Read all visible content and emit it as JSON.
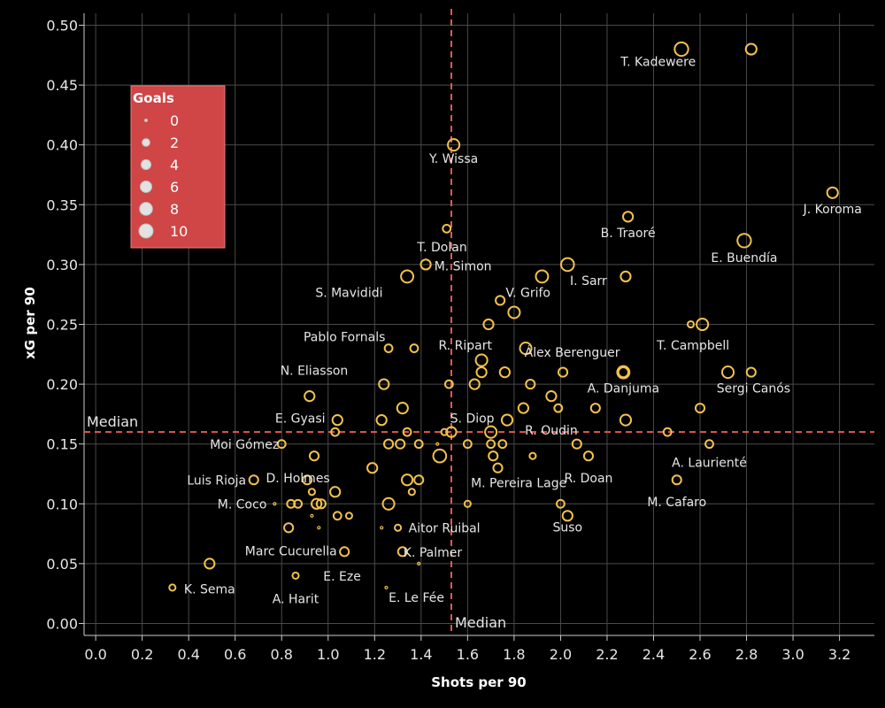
{
  "chart_data": {
    "type": "scatter",
    "xlabel": "Shots per 90",
    "ylabel": "xG per 90",
    "xlim": [
      -0.05,
      3.35
    ],
    "ylim": [
      -0.01,
      0.51
    ],
    "xticks": [
      0.0,
      0.2,
      0.4,
      0.6,
      0.8,
      1.0,
      1.2,
      1.4,
      1.6,
      1.8,
      2.0,
      2.2,
      2.4,
      2.6,
      2.8,
      3.0,
      3.2
    ],
    "yticks": [
      0.0,
      0.05,
      0.1,
      0.15,
      0.2,
      0.25,
      0.3,
      0.35,
      0.4,
      0.45,
      0.5
    ],
    "grid": true,
    "point_color": "#f2c14e",
    "median_color": "#e05a50",
    "median_x": 1.53,
    "median_y": 0.16,
    "median_x_label": "Median",
    "median_y_label": "Median",
    "size_legend": {
      "title": "Goals",
      "position": "top-left",
      "background": "#d04545",
      "entries": [
        0,
        2,
        4,
        6,
        8,
        10
      ]
    },
    "points": [
      {
        "x": 2.52,
        "y": 0.48,
        "goals": 9
      },
      {
        "x": 2.82,
        "y": 0.48,
        "goals": 5
      },
      {
        "x": 1.54,
        "y": 0.4,
        "goals": 6
      },
      {
        "x": 3.17,
        "y": 0.36,
        "goals": 5
      },
      {
        "x": 2.29,
        "y": 0.34,
        "goals": 4
      },
      {
        "x": 1.51,
        "y": 0.33,
        "goals": 2
      },
      {
        "x": 2.79,
        "y": 0.32,
        "goals": 9
      },
      {
        "x": 1.42,
        "y": 0.3,
        "goals": 4
      },
      {
        "x": 2.03,
        "y": 0.3,
        "goals": 8
      },
      {
        "x": 1.34,
        "y": 0.29,
        "goals": 7
      },
      {
        "x": 1.92,
        "y": 0.29,
        "goals": 7
      },
      {
        "x": 2.28,
        "y": 0.29,
        "goals": 4
      },
      {
        "x": 1.74,
        "y": 0.27,
        "goals": 3
      },
      {
        "x": 1.8,
        "y": 0.26,
        "goals": 6
      },
      {
        "x": 1.69,
        "y": 0.25,
        "goals": 4
      },
      {
        "x": 2.56,
        "y": 0.25,
        "goals": 1
      },
      {
        "x": 2.61,
        "y": 0.25,
        "goals": 6
      },
      {
        "x": 1.26,
        "y": 0.23,
        "goals": 2
      },
      {
        "x": 1.37,
        "y": 0.23,
        "goals": 2
      },
      {
        "x": 1.85,
        "y": 0.23,
        "goals": 6
      },
      {
        "x": 1.66,
        "y": 0.22,
        "goals": 6
      },
      {
        "x": 1.76,
        "y": 0.21,
        "goals": 4
      },
      {
        "x": 1.66,
        "y": 0.21,
        "goals": 4
      },
      {
        "x": 2.01,
        "y": 0.21,
        "goals": 3
      },
      {
        "x": 2.27,
        "y": 0.21,
        "goals": 7
      },
      {
        "x": 2.27,
        "y": 0.21,
        "goals": 4
      },
      {
        "x": 2.72,
        "y": 0.21,
        "goals": 6
      },
      {
        "x": 2.82,
        "y": 0.21,
        "goals": 3
      },
      {
        "x": 1.24,
        "y": 0.2,
        "goals": 4
      },
      {
        "x": 1.52,
        "y": 0.2,
        "goals": 2
      },
      {
        "x": 1.63,
        "y": 0.2,
        "goals": 4
      },
      {
        "x": 1.87,
        "y": 0.2,
        "goals": 3
      },
      {
        "x": 0.92,
        "y": 0.19,
        "goals": 4
      },
      {
        "x": 1.96,
        "y": 0.19,
        "goals": 4
      },
      {
        "x": 1.32,
        "y": 0.18,
        "goals": 5
      },
      {
        "x": 1.84,
        "y": 0.18,
        "goals": 4
      },
      {
        "x": 1.99,
        "y": 0.18,
        "goals": 2
      },
      {
        "x": 2.15,
        "y": 0.18,
        "goals": 3
      },
      {
        "x": 2.6,
        "y": 0.18,
        "goals": 3
      },
      {
        "x": 1.04,
        "y": 0.17,
        "goals": 4
      },
      {
        "x": 1.23,
        "y": 0.17,
        "goals": 4
      },
      {
        "x": 1.77,
        "y": 0.17,
        "goals": 5
      },
      {
        "x": 2.28,
        "y": 0.17,
        "goals": 5
      },
      {
        "x": 1.03,
        "y": 0.16,
        "goals": 2
      },
      {
        "x": 1.34,
        "y": 0.16,
        "goals": 2
      },
      {
        "x": 1.5,
        "y": 0.16,
        "goals": 1
      },
      {
        "x": 1.53,
        "y": 0.16,
        "goals": 4
      },
      {
        "x": 1.7,
        "y": 0.16,
        "goals": 6
      },
      {
        "x": 2.46,
        "y": 0.16,
        "goals": 2
      },
      {
        "x": 0.8,
        "y": 0.15,
        "goals": 2
      },
      {
        "x": 1.26,
        "y": 0.15,
        "goals": 3
      },
      {
        "x": 1.31,
        "y": 0.15,
        "goals": 3
      },
      {
        "x": 1.39,
        "y": 0.15,
        "goals": 2
      },
      {
        "x": 1.47,
        "y": 0.15,
        "goals": 0
      },
      {
        "x": 1.6,
        "y": 0.15,
        "goals": 2
      },
      {
        "x": 1.7,
        "y": 0.15,
        "goals": 2
      },
      {
        "x": 1.75,
        "y": 0.15,
        "goals": 2
      },
      {
        "x": 2.07,
        "y": 0.15,
        "goals": 3
      },
      {
        "x": 2.64,
        "y": 0.15,
        "goals": 2
      },
      {
        "x": 1.48,
        "y": 0.14,
        "goals": 8
      },
      {
        "x": 0.94,
        "y": 0.14,
        "goals": 3
      },
      {
        "x": 1.71,
        "y": 0.14,
        "goals": 3
      },
      {
        "x": 1.88,
        "y": 0.14,
        "goals": 1
      },
      {
        "x": 2.12,
        "y": 0.14,
        "goals": 3
      },
      {
        "x": 1.19,
        "y": 0.13,
        "goals": 4
      },
      {
        "x": 1.73,
        "y": 0.13,
        "goals": 3
      },
      {
        "x": 0.68,
        "y": 0.12,
        "goals": 3
      },
      {
        "x": 0.91,
        "y": 0.12,
        "goals": 3
      },
      {
        "x": 1.34,
        "y": 0.12,
        "goals": 5
      },
      {
        "x": 1.39,
        "y": 0.12,
        "goals": 3
      },
      {
        "x": 2.5,
        "y": 0.12,
        "goals": 3
      },
      {
        "x": 0.93,
        "y": 0.11,
        "goals": 1
      },
      {
        "x": 1.03,
        "y": 0.11,
        "goals": 4
      },
      {
        "x": 1.36,
        "y": 0.11,
        "goals": 1
      },
      {
        "x": 0.77,
        "y": 0.1,
        "goals": 0
      },
      {
        "x": 0.84,
        "y": 0.1,
        "goals": 2
      },
      {
        "x": 0.87,
        "y": 0.1,
        "goals": 2
      },
      {
        "x": 0.95,
        "y": 0.1,
        "goals": 4
      },
      {
        "x": 0.97,
        "y": 0.1,
        "goals": 3
      },
      {
        "x": 1.26,
        "y": 0.1,
        "goals": 6
      },
      {
        "x": 1.6,
        "y": 0.1,
        "goals": 1
      },
      {
        "x": 2.0,
        "y": 0.1,
        "goals": 2
      },
      {
        "x": 0.93,
        "y": 0.09,
        "goals": 0
      },
      {
        "x": 1.04,
        "y": 0.09,
        "goals": 2
      },
      {
        "x": 1.09,
        "y": 0.09,
        "goals": 1
      },
      {
        "x": 2.03,
        "y": 0.09,
        "goals": 4
      },
      {
        "x": 0.83,
        "y": 0.08,
        "goals": 3
      },
      {
        "x": 0.96,
        "y": 0.08,
        "goals": 0
      },
      {
        "x": 1.23,
        "y": 0.08,
        "goals": 0
      },
      {
        "x": 1.3,
        "y": 0.08,
        "goals": 1
      },
      {
        "x": 1.07,
        "y": 0.06,
        "goals": 3
      },
      {
        "x": 1.32,
        "y": 0.06,
        "goals": 3
      },
      {
        "x": 0.49,
        "y": 0.05,
        "goals": 4
      },
      {
        "x": 1.39,
        "y": 0.05,
        "goals": 0
      },
      {
        "x": 0.86,
        "y": 0.04,
        "goals": 1
      },
      {
        "x": 0.33,
        "y": 0.03,
        "goals": 1
      },
      {
        "x": 1.25,
        "y": 0.03,
        "goals": 0
      }
    ],
    "labels": [
      {
        "text": "T. Kadewere",
        "x": 2.42,
        "y": 0.466
      },
      {
        "text": "Y. Wissa",
        "x": 1.54,
        "y": 0.385
      },
      {
        "text": "J. Koroma",
        "x": 3.17,
        "y": 0.343
      },
      {
        "text": "B. Traoré",
        "x": 2.29,
        "y": 0.323
      },
      {
        "text": "T. Dolan",
        "x": 1.49,
        "y": 0.311
      },
      {
        "text": "E. Buendía",
        "x": 2.79,
        "y": 0.302
      },
      {
        "text": "M. Simon",
        "x": 1.58,
        "y": 0.295
      },
      {
        "text": "I. Sarr",
        "x": 2.12,
        "y": 0.283
      },
      {
        "text": "S. Mavididi",
        "x": 1.09,
        "y": 0.273
      },
      {
        "text": "V. Grifo",
        "x": 1.86,
        "y": 0.273
      },
      {
        "text": "Pablo Fornals",
        "x": 1.07,
        "y": 0.236
      },
      {
        "text": "R. Ripart",
        "x": 1.59,
        "y": 0.229
      },
      {
        "text": "T. Campbell",
        "x": 2.57,
        "y": 0.229
      },
      {
        "text": "Álex Berenguer",
        "x": 2.05,
        "y": 0.223
      },
      {
        "text": "N. Eliasson",
        "x": 0.94,
        "y": 0.208
      },
      {
        "text": "A. Danjuma",
        "x": 2.27,
        "y": 0.193
      },
      {
        "text": "Sergi Canós",
        "x": 2.83,
        "y": 0.193
      },
      {
        "text": "E. Gyasi",
        "x": 0.88,
        "y": 0.168
      },
      {
        "text": "S. Diop",
        "x": 1.62,
        "y": 0.168
      },
      {
        "text": "R. Oudin",
        "x": 1.96,
        "y": 0.158
      },
      {
        "text": "Moi Gómez",
        "x": 0.64,
        "y": 0.146
      },
      {
        "text": "A. Laurienté",
        "x": 2.64,
        "y": 0.131
      },
      {
        "text": "D. Holmes",
        "x": 0.87,
        "y": 0.118
      },
      {
        "text": "R. Doan",
        "x": 2.12,
        "y": 0.118
      },
      {
        "text": "Luis Rioja",
        "x": 0.52,
        "y": 0.116
      },
      {
        "text": "M. Pereira Lage",
        "x": 1.82,
        "y": 0.114
      },
      {
        "text": "M. Cafaro",
        "x": 2.5,
        "y": 0.098
      },
      {
        "text": "M. Coco",
        "x": 0.63,
        "y": 0.096
      },
      {
        "text": "Suso",
        "x": 2.03,
        "y": 0.077
      },
      {
        "text": "Aitor Ruibal",
        "x": 1.5,
        "y": 0.076
      },
      {
        "text": "Marc Cucurella",
        "x": 0.84,
        "y": 0.057
      },
      {
        "text": "K. Palmer",
        "x": 1.45,
        "y": 0.056
      },
      {
        "text": "E. Eze",
        "x": 1.06,
        "y": 0.036
      },
      {
        "text": "K. Sema",
        "x": 0.49,
        "y": 0.025
      },
      {
        "text": "A. Harit",
        "x": 0.86,
        "y": 0.017
      },
      {
        "text": "E. Le Fée",
        "x": 1.38,
        "y": 0.018
      }
    ]
  }
}
